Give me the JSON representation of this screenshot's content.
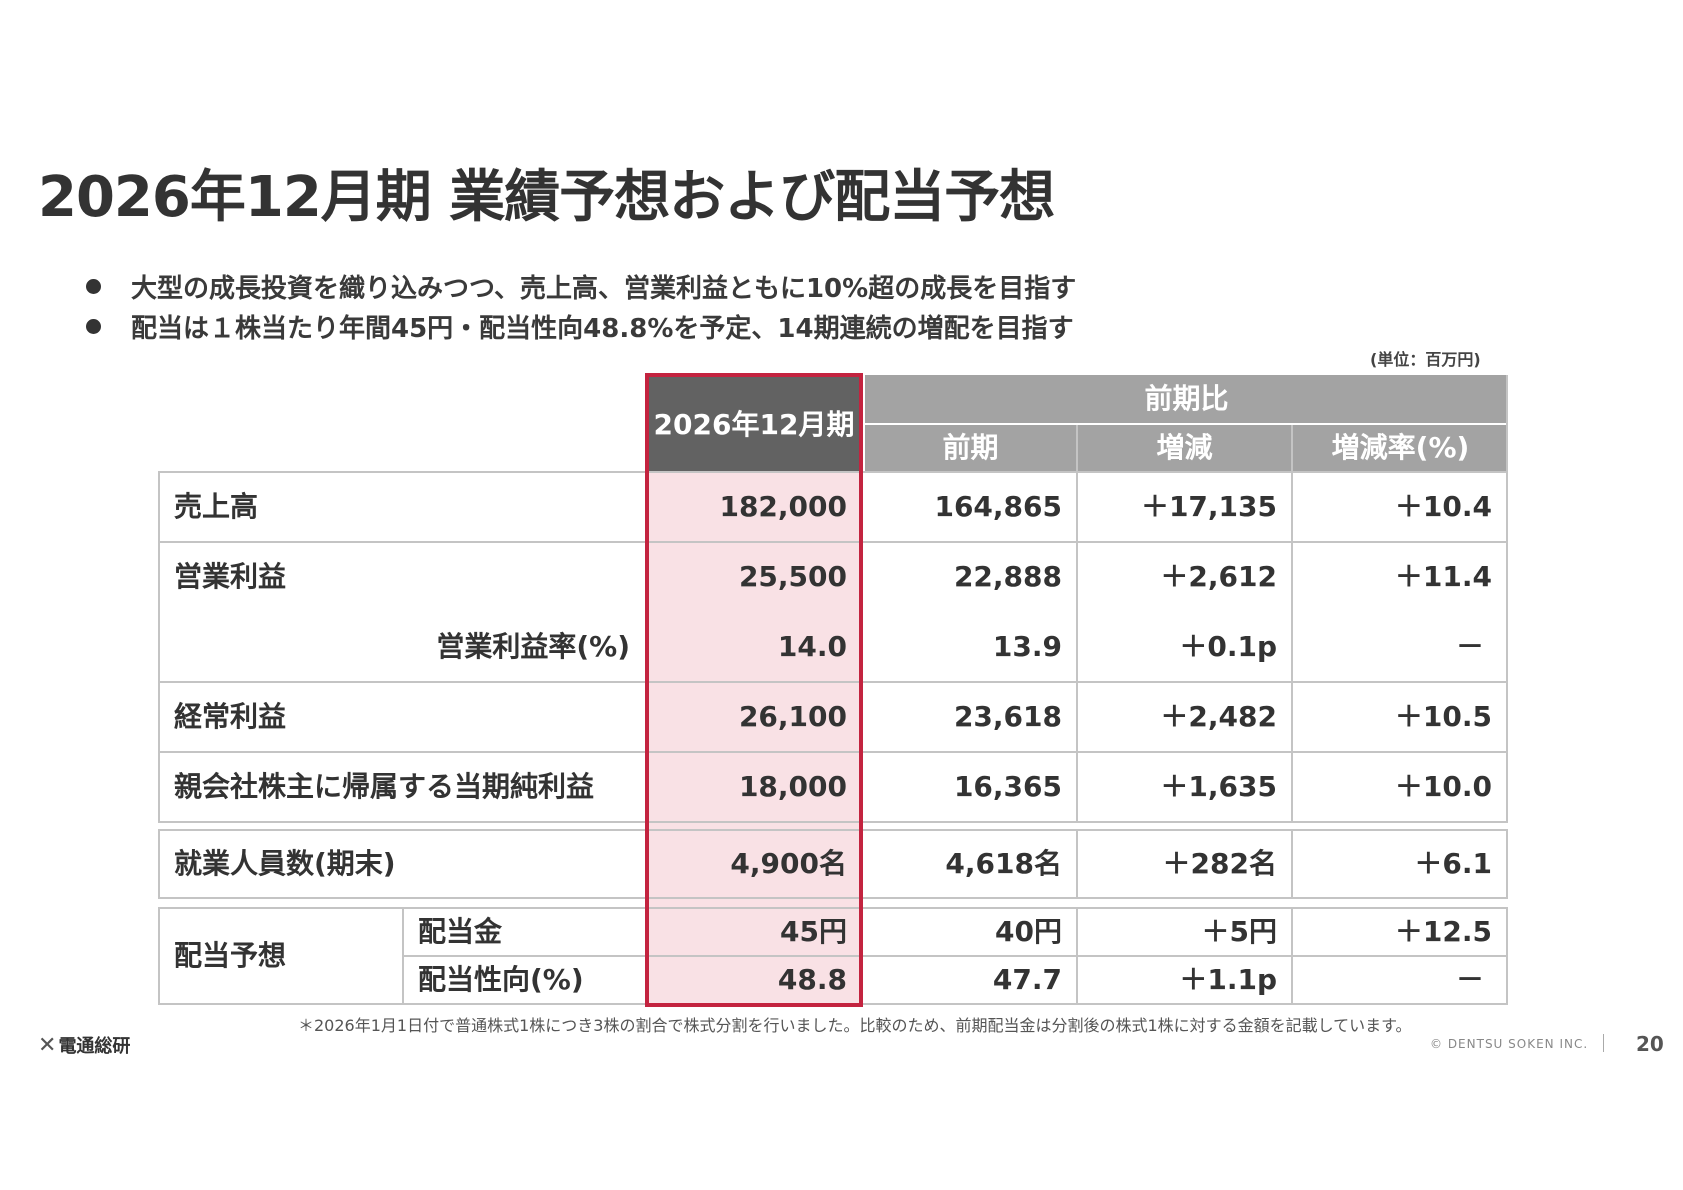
{
  "title": "2026年12月期 業績予想および配当予想",
  "bullets": [
    "大型の成長投資を織り込みつつ、売上高、営業利益ともに10%超の成長を目指す",
    "配当は１株当たり年間45円・配当性向48.8%を予定、14期連続の増配を目指す"
  ],
  "unit_note": "(単位：百万円)",
  "table": {
    "header": {
      "current": "2026年12月期",
      "group": "前期比",
      "prev": "前期",
      "change": "増減",
      "rate": "増減率(%)"
    },
    "rows": [
      {
        "label": "売上高",
        "current": "182,000",
        "prev": "164,865",
        "change": "＋17,135",
        "rate": "＋10.4"
      },
      {
        "label": "営業利益",
        "current": "25,500",
        "prev": "22,888",
        "change": "＋2,612",
        "rate": "＋11.4"
      },
      {
        "label": "営業利益率(%)",
        "current": "14.0",
        "prev": "13.9",
        "change": "＋0.1p",
        "rate": "－"
      },
      {
        "label": "経常利益",
        "current": "26,100",
        "prev": "23,618",
        "change": "＋2,482",
        "rate": "＋10.5"
      },
      {
        "label": "親会社株主に帰属する当期純利益",
        "current": "18,000",
        "prev": "16,365",
        "change": "＋1,635",
        "rate": "＋10.0"
      },
      {
        "label": "就業人員数(期末)",
        "current": "4,900名",
        "prev": "4,618名",
        "change": "＋282名",
        "rate": "＋6.1"
      }
    ],
    "dividend": {
      "group_label": "配当予想",
      "rows": [
        {
          "label": "配当金",
          "current": "45円",
          "prev": "40円",
          "change": "＋5円",
          "rate": "＋12.5"
        },
        {
          "label": "配当性向(%)",
          "current": "48.8",
          "prev": "47.7",
          "change": "＋1.1p",
          "rate": "－"
        }
      ]
    }
  },
  "footnote": "＊2026年1月1日付で普通株式1株につき3株の割合で株式分割を行いました。比較のため、前期配当金は分割後の株式1株に対する金額を記載しています。",
  "logo_text": "電通総研",
  "copyright": "© DENTSU SOKEN INC.",
  "page_number": "20",
  "colors": {
    "highlight": "#c3233f",
    "highlight_fill": "#f9e1e5",
    "header_dark": "#626262",
    "header_gray": "#a3a3a3"
  }
}
